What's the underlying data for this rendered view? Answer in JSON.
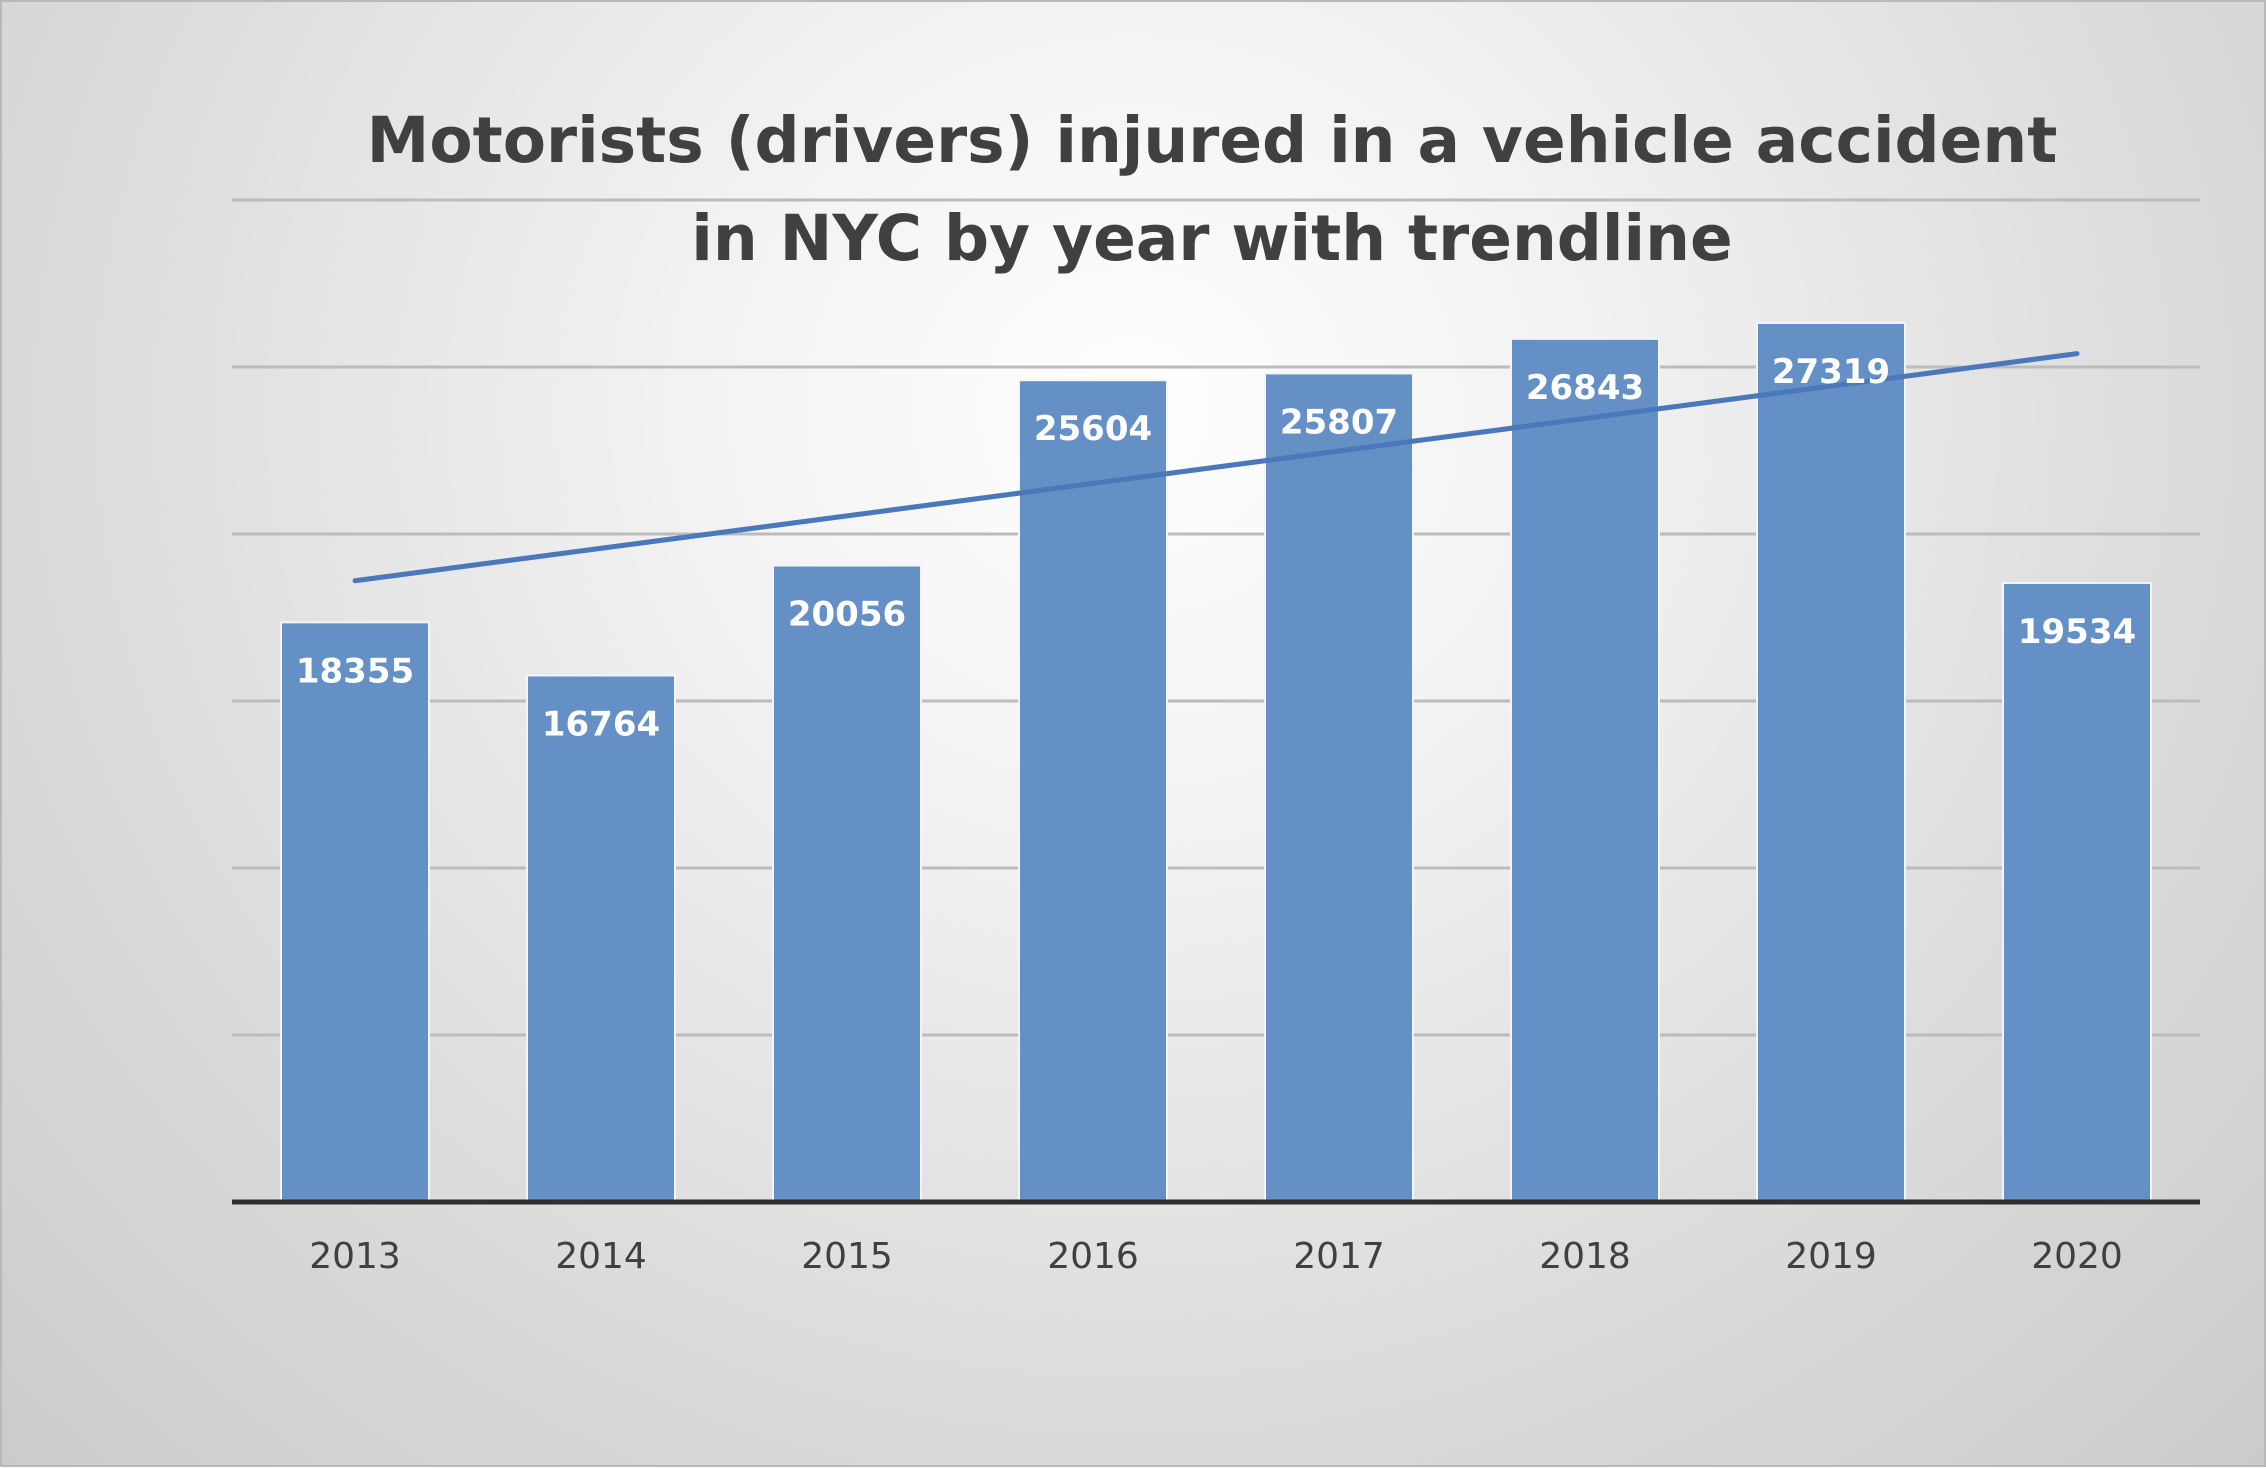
{
  "chart_data": {
    "type": "bar",
    "title": "Motorists (drivers) injured in a vehicle accident in NYC by year with trendline",
    "title_lines": [
      "Motorists (drivers) injured in a vehicle accident",
      "in NYC by year with trendline"
    ],
    "categories": [
      "2013",
      "2014",
      "2015",
      "2016",
      "2017",
      "2018",
      "2019",
      "2020"
    ],
    "series": [
      {
        "values": [
          18355,
          16764,
          20056,
          25604,
          25807,
          26843,
          27319,
          19534
        ],
        "color": "#6490c6"
      }
    ],
    "trendline": {
      "type": "linear",
      "start_value": 19600,
      "end_value": 26400,
      "color": "#4a78bb"
    },
    "data_labels": true,
    "ylim": [
      1000,
      31000
    ],
    "gridline_step": 5000,
    "grid": true,
    "legend": "none",
    "xlabel": "",
    "ylabel": "",
    "colors": {
      "gridline": "#bcbcbc",
      "axis": "#2f2f2f",
      "tick_text": "#404040",
      "title_text": "#404040",
      "label_text": "#ffffff"
    }
  }
}
